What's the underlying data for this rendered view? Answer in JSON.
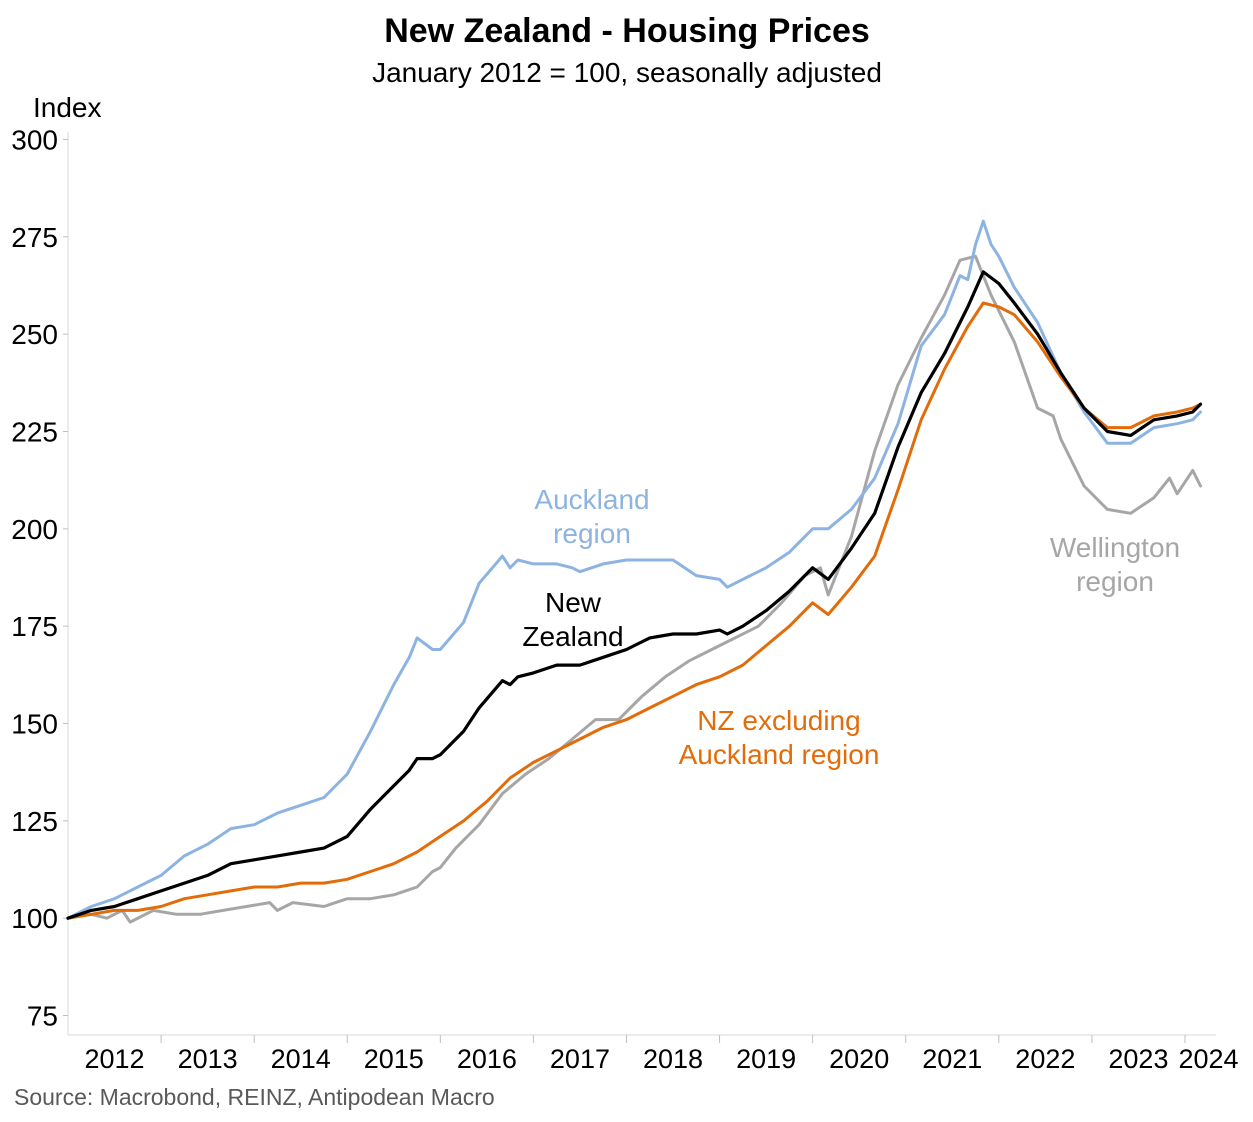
{
  "chart_data": {
    "type": "line",
    "title": "New Zealand - Housing Prices",
    "subtitle": "January 2012 = 100, seasonally adjusted",
    "ylabel": "Index",
    "source": "Source: Macrobond, REINZ, Antipodean Macro",
    "ylim": [
      70,
      305
    ],
    "yticks": [
      75,
      100,
      125,
      150,
      175,
      200,
      225,
      250,
      275,
      300
    ],
    "xlim": [
      "2012-01",
      "2024-05"
    ],
    "xticks": [
      "2012",
      "2013",
      "2014",
      "2015",
      "2016",
      "2017",
      "2018",
      "2019",
      "2020",
      "2021",
      "2022",
      "2023",
      "2024"
    ],
    "grid": false,
    "legend": "inline labels",
    "colors": {
      "auckland": "#8DB3E2",
      "new_zealand": "#000000",
      "nz_ex_auckland": "#E36C0A",
      "wellington": "#A6A6A6"
    },
    "series": [
      {
        "key": "auckland",
        "name": [
          "Auckland",
          "region"
        ],
        "points": [
          [
            "2012-01",
            100
          ],
          [
            "2012-04",
            103
          ],
          [
            "2012-07",
            105
          ],
          [
            "2012-10",
            108
          ],
          [
            "2013-01",
            111
          ],
          [
            "2013-04",
            116
          ],
          [
            "2013-07",
            119
          ],
          [
            "2013-10",
            123
          ],
          [
            "2014-01",
            124
          ],
          [
            "2014-04",
            127
          ],
          [
            "2014-07",
            129
          ],
          [
            "2014-10",
            131
          ],
          [
            "2015-01",
            137
          ],
          [
            "2015-04",
            148
          ],
          [
            "2015-07",
            160
          ],
          [
            "2015-09",
            167
          ],
          [
            "2015-10",
            172
          ],
          [
            "2015-12",
            169
          ],
          [
            "2016-01",
            169
          ],
          [
            "2016-04",
            176
          ],
          [
            "2016-06",
            186
          ],
          [
            "2016-09",
            193
          ],
          [
            "2016-10",
            190
          ],
          [
            "2016-11",
            192
          ],
          [
            "2017-01",
            191
          ],
          [
            "2017-04",
            191
          ],
          [
            "2017-06",
            190
          ],
          [
            "2017-07",
            189
          ],
          [
            "2017-10",
            191
          ],
          [
            "2018-01",
            192
          ],
          [
            "2018-04",
            192
          ],
          [
            "2018-07",
            192
          ],
          [
            "2018-10",
            188
          ],
          [
            "2019-01",
            187
          ],
          [
            "2019-02",
            185
          ],
          [
            "2019-04",
            187
          ],
          [
            "2019-07",
            190
          ],
          [
            "2019-10",
            194
          ],
          [
            "2020-01",
            200
          ],
          [
            "2020-03",
            200
          ],
          [
            "2020-06",
            205
          ],
          [
            "2020-09",
            213
          ],
          [
            "2020-12",
            227
          ],
          [
            "2021-03",
            247
          ],
          [
            "2021-06",
            255
          ],
          [
            "2021-07",
            260
          ],
          [
            "2021-08",
            265
          ],
          [
            "2021-09",
            264
          ],
          [
            "2021-10",
            273
          ],
          [
            "2021-11",
            279
          ],
          [
            "2021-12",
            273
          ],
          [
            "2022-01",
            270
          ],
          [
            "2022-03",
            262
          ],
          [
            "2022-06",
            253
          ],
          [
            "2022-09",
            240
          ],
          [
            "2022-12",
            230
          ],
          [
            "2023-03",
            222
          ],
          [
            "2023-06",
            222
          ],
          [
            "2023-09",
            226
          ],
          [
            "2023-12",
            227
          ],
          [
            "2024-02",
            228
          ],
          [
            "2024-03",
            230
          ]
        ]
      },
      {
        "key": "new_zealand",
        "name": [
          "New",
          "Zealand"
        ],
        "points": [
          [
            "2012-01",
            100
          ],
          [
            "2012-04",
            102
          ],
          [
            "2012-07",
            103
          ],
          [
            "2012-10",
            105
          ],
          [
            "2013-01",
            107
          ],
          [
            "2013-04",
            109
          ],
          [
            "2013-07",
            111
          ],
          [
            "2013-10",
            114
          ],
          [
            "2014-01",
            115
          ],
          [
            "2014-04",
            116
          ],
          [
            "2014-07",
            117
          ],
          [
            "2014-10",
            118
          ],
          [
            "2015-01",
            121
          ],
          [
            "2015-04",
            128
          ],
          [
            "2015-07",
            134
          ],
          [
            "2015-09",
            138
          ],
          [
            "2015-10",
            141
          ],
          [
            "2015-12",
            141
          ],
          [
            "2016-01",
            142
          ],
          [
            "2016-04",
            148
          ],
          [
            "2016-06",
            154
          ],
          [
            "2016-09",
            161
          ],
          [
            "2016-10",
            160
          ],
          [
            "2016-11",
            162
          ],
          [
            "2017-01",
            163
          ],
          [
            "2017-04",
            165
          ],
          [
            "2017-07",
            165
          ],
          [
            "2017-10",
            167
          ],
          [
            "2018-01",
            169
          ],
          [
            "2018-04",
            172
          ],
          [
            "2018-07",
            173
          ],
          [
            "2018-10",
            173
          ],
          [
            "2019-01",
            174
          ],
          [
            "2019-02",
            173
          ],
          [
            "2019-04",
            175
          ],
          [
            "2019-07",
            179
          ],
          [
            "2019-10",
            184
          ],
          [
            "2020-01",
            190
          ],
          [
            "2020-03",
            187
          ],
          [
            "2020-06",
            195
          ],
          [
            "2020-09",
            204
          ],
          [
            "2020-12",
            221
          ],
          [
            "2021-03",
            235
          ],
          [
            "2021-06",
            245
          ],
          [
            "2021-09",
            257
          ],
          [
            "2021-11",
            266
          ],
          [
            "2022-01",
            263
          ],
          [
            "2022-03",
            258
          ],
          [
            "2022-06",
            250
          ],
          [
            "2022-09",
            240
          ],
          [
            "2022-12",
            231
          ],
          [
            "2023-03",
            225
          ],
          [
            "2023-06",
            224
          ],
          [
            "2023-09",
            228
          ],
          [
            "2023-12",
            229
          ],
          [
            "2024-02",
            230
          ],
          [
            "2024-03",
            232
          ]
        ]
      },
      {
        "key": "nz_ex_auckland",
        "name": [
          "NZ excluding",
          "Auckland region"
        ],
        "points": [
          [
            "2012-01",
            100
          ],
          [
            "2012-04",
            101
          ],
          [
            "2012-07",
            102
          ],
          [
            "2012-10",
            102
          ],
          [
            "2013-01",
            103
          ],
          [
            "2013-04",
            105
          ],
          [
            "2013-07",
            106
          ],
          [
            "2013-10",
            107
          ],
          [
            "2014-01",
            108
          ],
          [
            "2014-04",
            108
          ],
          [
            "2014-07",
            109
          ],
          [
            "2014-10",
            109
          ],
          [
            "2015-01",
            110
          ],
          [
            "2015-04",
            112
          ],
          [
            "2015-07",
            114
          ],
          [
            "2015-10",
            117
          ],
          [
            "2016-01",
            121
          ],
          [
            "2016-04",
            125
          ],
          [
            "2016-07",
            130
          ],
          [
            "2016-10",
            136
          ],
          [
            "2017-01",
            140
          ],
          [
            "2017-04",
            143
          ],
          [
            "2017-07",
            146
          ],
          [
            "2017-10",
            149
          ],
          [
            "2018-01",
            151
          ],
          [
            "2018-04",
            154
          ],
          [
            "2018-07",
            157
          ],
          [
            "2018-10",
            160
          ],
          [
            "2019-01",
            162
          ],
          [
            "2019-04",
            165
          ],
          [
            "2019-07",
            170
          ],
          [
            "2019-10",
            175
          ],
          [
            "2020-01",
            181
          ],
          [
            "2020-03",
            178
          ],
          [
            "2020-06",
            185
          ],
          [
            "2020-09",
            193
          ],
          [
            "2020-12",
            210
          ],
          [
            "2021-03",
            228
          ],
          [
            "2021-06",
            241
          ],
          [
            "2021-09",
            252
          ],
          [
            "2021-11",
            258
          ],
          [
            "2022-01",
            257
          ],
          [
            "2022-03",
            255
          ],
          [
            "2022-06",
            248
          ],
          [
            "2022-09",
            239
          ],
          [
            "2022-12",
            231
          ],
          [
            "2023-03",
            226
          ],
          [
            "2023-06",
            226
          ],
          [
            "2023-09",
            229
          ],
          [
            "2023-12",
            230
          ],
          [
            "2024-02",
            231
          ],
          [
            "2024-03",
            232
          ]
        ]
      },
      {
        "key": "wellington",
        "name": [
          "Wellington",
          "region"
        ],
        "points": [
          [
            "2012-01",
            100
          ],
          [
            "2012-04",
            101
          ],
          [
            "2012-06",
            100
          ],
          [
            "2012-08",
            102
          ],
          [
            "2012-09",
            99
          ],
          [
            "2012-12",
            102
          ],
          [
            "2013-03",
            101
          ],
          [
            "2013-06",
            101
          ],
          [
            "2013-09",
            102
          ],
          [
            "2013-12",
            103
          ],
          [
            "2014-03",
            104
          ],
          [
            "2014-04",
            102
          ],
          [
            "2014-06",
            104
          ],
          [
            "2014-10",
            103
          ],
          [
            "2015-01",
            105
          ],
          [
            "2015-04",
            105
          ],
          [
            "2015-07",
            106
          ],
          [
            "2015-10",
            108
          ],
          [
            "2015-12",
            112
          ],
          [
            "2016-01",
            113
          ],
          [
            "2016-03",
            118
          ],
          [
            "2016-06",
            124
          ],
          [
            "2016-09",
            132
          ],
          [
            "2016-12",
            137
          ],
          [
            "2017-03",
            141
          ],
          [
            "2017-06",
            146
          ],
          [
            "2017-09",
            151
          ],
          [
            "2017-12",
            151
          ],
          [
            "2018-03",
            157
          ],
          [
            "2018-06",
            162
          ],
          [
            "2018-09",
            166
          ],
          [
            "2018-12",
            169
          ],
          [
            "2019-03",
            172
          ],
          [
            "2019-06",
            175
          ],
          [
            "2019-09",
            181
          ],
          [
            "2019-12",
            188
          ],
          [
            "2020-02",
            190
          ],
          [
            "2020-03",
            183
          ],
          [
            "2020-06",
            198
          ],
          [
            "2020-09",
            220
          ],
          [
            "2020-12",
            237
          ],
          [
            "2021-03",
            249
          ],
          [
            "2021-06",
            260
          ],
          [
            "2021-08",
            269
          ],
          [
            "2021-10",
            270
          ],
          [
            "2021-12",
            260
          ],
          [
            "2022-03",
            248
          ],
          [
            "2022-06",
            231
          ],
          [
            "2022-08",
            229
          ],
          [
            "2022-09",
            223
          ],
          [
            "2022-12",
            211
          ],
          [
            "2023-03",
            205
          ],
          [
            "2023-06",
            204
          ],
          [
            "2023-09",
            208
          ],
          [
            "2023-11",
            213
          ],
          [
            "2023-12",
            209
          ],
          [
            "2024-02",
            215
          ],
          [
            "2024-03",
            211
          ]
        ]
      }
    ],
    "series_labels": [
      {
        "key": "auckland",
        "lines": [
          "Auckland",
          "region"
        ]
      },
      {
        "key": "new_zealand",
        "lines": [
          "New",
          "Zealand"
        ]
      },
      {
        "key": "nz_ex_auckland",
        "lines": [
          "NZ excluding",
          "Auckland region"
        ]
      },
      {
        "key": "wellington",
        "lines": [
          "Wellington",
          "region"
        ]
      }
    ]
  }
}
